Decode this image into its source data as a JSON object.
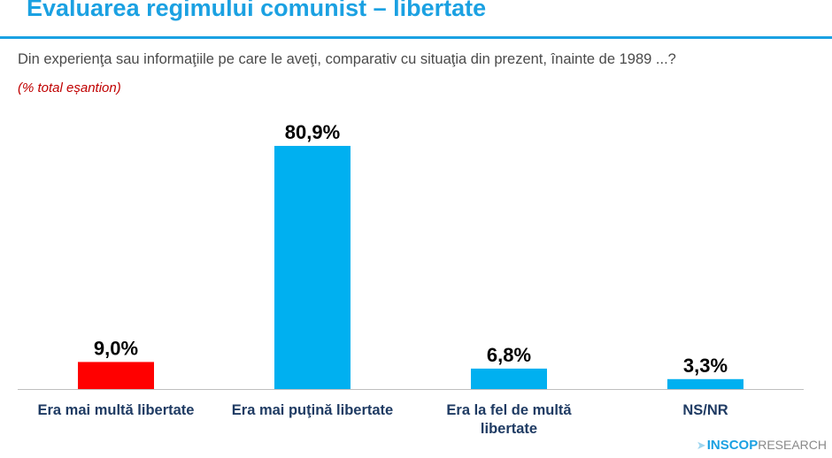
{
  "header": {
    "title": "Evaluarea regimului comunist – libertate",
    "question": "Din experienţa sau informaţiile pe care le aveţi, comparativ cu situaţia din prezent, înainte de 1989 ...?",
    "note": "(% total eșantion)"
  },
  "brand": {
    "strong": "INSCOP",
    "light": "RESEARCH"
  },
  "chart_data": {
    "type": "bar",
    "categories": [
      [
        "Era mai multă libertate"
      ],
      [
        "Era mai puţină libertate"
      ],
      [
        "Era la fel de multă",
        "libertate"
      ],
      [
        "NS/NR"
      ]
    ],
    "values": [
      9.0,
      80.9,
      6.8,
      3.3
    ],
    "data_labels": [
      "9,0%",
      "80,9%",
      "6,8%",
      "3,3%"
    ],
    "bar_colors": [
      "#ff0000",
      "#00b0f0",
      "#00b0f0",
      "#00b0f0"
    ],
    "ylim": [
      0,
      80.9
    ],
    "grid": false,
    "legend": "none"
  }
}
